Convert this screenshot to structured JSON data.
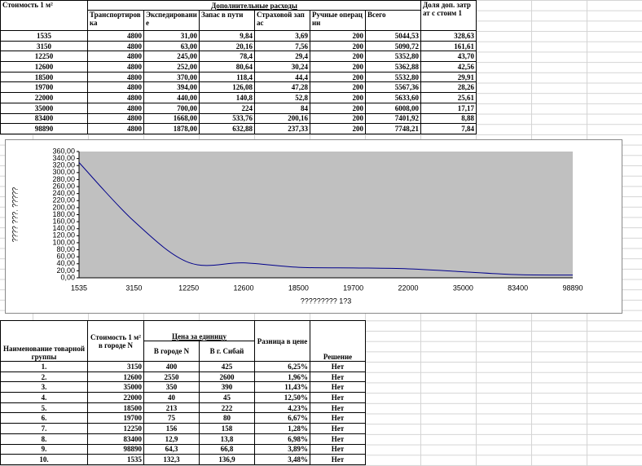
{
  "top_table": {
    "header_title": "Стоимость 1 м²",
    "group_header": "Дополнительные расходы",
    "columns": [
      "Транспортировка",
      "Экспедирование",
      "Запас в пути",
      "Страховой запас",
      "Ручные операции",
      "Всего"
    ],
    "share_header": "Доля доп. затрат с стоим 1",
    "rows": [
      [
        "1535",
        "4800",
        "31,00",
        "9,84",
        "3,69",
        "200",
        "5044,53",
        "328,63"
      ],
      [
        "3150",
        "4800",
        "63,00",
        "20,16",
        "7,56",
        "200",
        "5090,72",
        "161,61"
      ],
      [
        "12250",
        "4800",
        "245,00",
        "78,4",
        "29,4",
        "200",
        "5352,80",
        "43,70"
      ],
      [
        "12600",
        "4800",
        "252,00",
        "80,64",
        "30,24",
        "200",
        "5362,88",
        "42,56"
      ],
      [
        "18500",
        "4800",
        "370,00",
        "118,4",
        "44,4",
        "200",
        "5532,80",
        "29,91"
      ],
      [
        "19700",
        "4800",
        "394,00",
        "126,08",
        "47,28",
        "200",
        "5567,36",
        "28,26"
      ],
      [
        "22000",
        "4800",
        "440,00",
        "140,8",
        "52,8",
        "200",
        "5633,60",
        "25,61"
      ],
      [
        "35000",
        "4800",
        "700,00",
        "224",
        "84",
        "200",
        "6008,00",
        "17,17"
      ],
      [
        "83400",
        "4800",
        "1668,00",
        "533,76",
        "200,16",
        "200",
        "7401,92",
        "8,88"
      ],
      [
        "98890",
        "4800",
        "1878,00",
        "632,88",
        "237,33",
        "200",
        "7748,21",
        "7,84"
      ]
    ]
  },
  "chart_data": {
    "type": "line",
    "x_label": "????????? 1?3",
    "y_label": "???? ???. ?????",
    "categories": [
      "1535",
      "3150",
      "12250",
      "12600",
      "18500",
      "19700",
      "22000",
      "35000",
      "83400",
      "98890"
    ],
    "values": [
      328.63,
      161.61,
      43.7,
      42.56,
      29.91,
      28.26,
      25.61,
      17.17,
      8.88,
      7.84
    ],
    "color": "#00008b",
    "plot_background": "#c0c0c0",
    "ylim": [
      0,
      360
    ],
    "yticks": [
      {
        "value": 0,
        "label": "0,00"
      },
      {
        "value": 20,
        "label": "20,00"
      },
      {
        "value": 40,
        "label": "40,00"
      },
      {
        "value": 60,
        "label": "60,00"
      },
      {
        "value": 80,
        "label": "80,00"
      },
      {
        "value": 100,
        "label": "100,00"
      },
      {
        "value": 120,
        "label": "120,00"
      },
      {
        "value": 140,
        "label": "140,00"
      },
      {
        "value": 160,
        "label": "160,00"
      },
      {
        "value": 180,
        "label": "180,00"
      },
      {
        "value": 200,
        "label": "200,00"
      },
      {
        "value": 220,
        "label": "220,00"
      },
      {
        "value": 240,
        "label": "240,00"
      },
      {
        "value": 260,
        "label": "260,00"
      },
      {
        "value": 280,
        "label": "280,00"
      },
      {
        "value": 300,
        "label": "300,00"
      },
      {
        "value": 320,
        "label": "320,00"
      },
      {
        "value": 340,
        "label": "340,00"
      },
      {
        "value": 360,
        "label": "360,00"
      }
    ]
  },
  "bottom_table": {
    "headers": {
      "name": "Наименование товарной группы",
      "cost": "Стоимость 1 м² в городе N",
      "price": "Цена за единицу",
      "city_n": "В городе N",
      "sibay": "В г. Сибай",
      "diff": "Разница в цене",
      "decision": "Решение"
    },
    "rows": [
      [
        "1.",
        "3150",
        "400",
        "425",
        "6,25%",
        "Нет"
      ],
      [
        "2.",
        "12600",
        "2550",
        "2600",
        "1,96%",
        "Нет"
      ],
      [
        "3.",
        "35000",
        "350",
        "390",
        "11,43%",
        "Нет"
      ],
      [
        "4.",
        "22000",
        "40",
        "45",
        "12,50%",
        "Нет"
      ],
      [
        "5.",
        "18500",
        "213",
        "222",
        "4,23%",
        "Нет"
      ],
      [
        "6.",
        "19700",
        "75",
        "80",
        "6,67%",
        "Нет"
      ],
      [
        "7.",
        "12250",
        "156",
        "158",
        "1,28%",
        "Нет"
      ],
      [
        "8.",
        "83400",
        "12,9",
        "13,8",
        "6,98%",
        "Нет"
      ],
      [
        "9.",
        "98890",
        "64,3",
        "66,8",
        "3,89%",
        "Нет"
      ],
      [
        "10.",
        "1535",
        "132,3",
        "136,9",
        "3,48%",
        "Нет"
      ]
    ]
  }
}
